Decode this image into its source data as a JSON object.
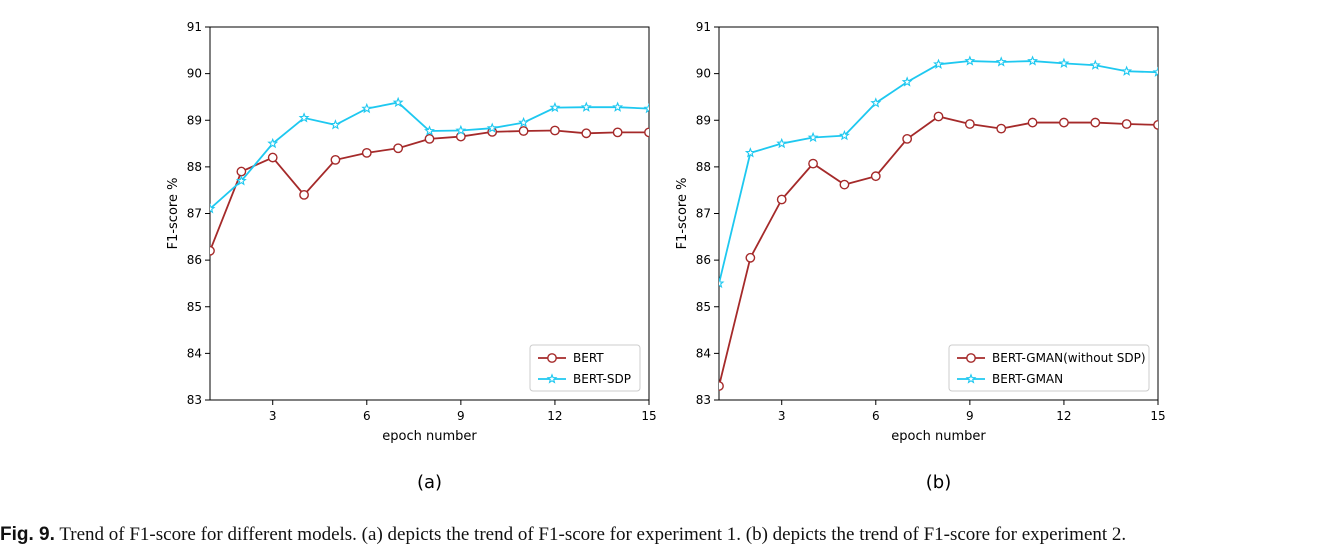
{
  "figure_label": "Fig. 9.",
  "caption": "Trend of F1-score for different models. (a) depicts the trend of F1-score for experiment 1. (b) depicts the trend of F1-score for experiment 2.",
  "chart_data": [
    {
      "type": "line",
      "panel_label": "(a)",
      "title": "",
      "xlabel": "epoch number",
      "ylabel": "F1-score %",
      "xlim": [
        1,
        15
      ],
      "ylim": [
        83,
        91
      ],
      "xticks": [
        3,
        6,
        9,
        12,
        15
      ],
      "yticks": [
        83,
        84,
        85,
        86,
        87,
        88,
        89,
        90,
        91
      ],
      "legend_position": "bottom-right",
      "x": [
        1,
        2,
        3,
        4,
        5,
        6,
        7,
        8,
        9,
        10,
        11,
        12,
        13,
        14,
        15
      ],
      "series": [
        {
          "name": "BERT",
          "color": "#a52a2a",
          "marker": "circle",
          "values": [
            86.2,
            87.9,
            88.2,
            87.4,
            88.15,
            88.3,
            88.4,
            88.6,
            88.65,
            88.75,
            88.77,
            88.78,
            88.72,
            88.74,
            88.74
          ]
        },
        {
          "name": "BERT-SDP",
          "color": "#1ec8f0",
          "marker": "star",
          "values": [
            87.1,
            87.7,
            88.5,
            89.05,
            88.9,
            89.25,
            89.38,
            88.77,
            88.78,
            88.83,
            88.95,
            89.27,
            89.28,
            89.28,
            89.25
          ]
        }
      ]
    },
    {
      "type": "line",
      "panel_label": "(b)",
      "title": "",
      "xlabel": "epoch number",
      "ylabel": "F1-score %",
      "xlim": [
        1,
        15
      ],
      "ylim": [
        83,
        91
      ],
      "xticks": [
        3,
        6,
        9,
        12,
        15
      ],
      "yticks": [
        83,
        84,
        85,
        86,
        87,
        88,
        89,
        90,
        91
      ],
      "legend_position": "bottom-right",
      "x": [
        1,
        2,
        3,
        4,
        5,
        6,
        7,
        8,
        9,
        10,
        11,
        12,
        13,
        14,
        15
      ],
      "series": [
        {
          "name": "BERT-GMAN(without SDP)",
          "color": "#a52a2a",
          "marker": "circle",
          "values": [
            83.3,
            86.05,
            87.3,
            88.07,
            87.62,
            87.8,
            88.6,
            89.08,
            88.92,
            88.82,
            88.95,
            88.95,
            88.95,
            88.92,
            88.9
          ]
        },
        {
          "name": "BERT-GMAN",
          "color": "#1ec8f0",
          "marker": "star",
          "values": [
            85.5,
            88.3,
            88.5,
            88.63,
            88.67,
            89.37,
            89.82,
            90.2,
            90.27,
            90.25,
            90.27,
            90.22,
            90.18,
            90.05,
            90.03
          ]
        }
      ]
    }
  ]
}
